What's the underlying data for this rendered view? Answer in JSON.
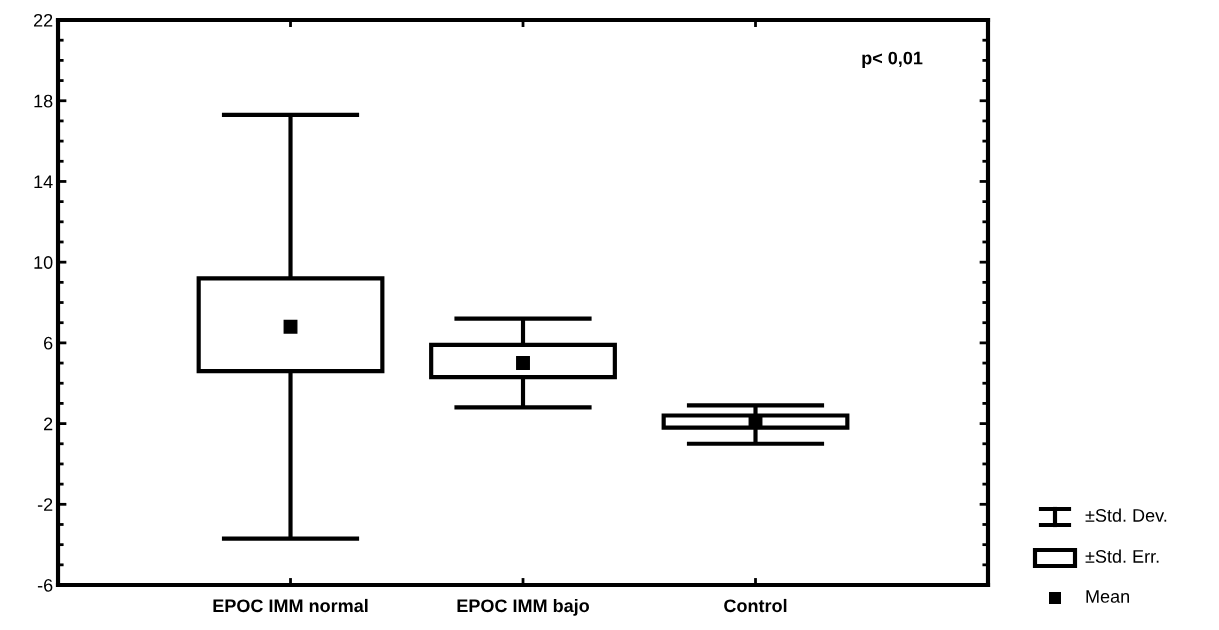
{
  "chart_data": {
    "type": "box",
    "categories": [
      "EPOC IMM normal",
      "EPOC IMM bajo",
      "Control"
    ],
    "boxes": [
      {
        "low": -3.7,
        "q1": 4.6,
        "q3": 9.2,
        "high": 17.3,
        "mean": 6.8
      },
      {
        "low": 2.8,
        "q1": 4.3,
        "q3": 5.9,
        "high": 7.2,
        "mean": 5.0
      },
      {
        "low": 1.0,
        "q1": 1.8,
        "q3": 2.4,
        "high": 2.9,
        "mean": 2.1
      }
    ],
    "ylim": [
      -6,
      22
    ],
    "yticks": [
      -6,
      -2,
      2,
      6,
      10,
      14,
      18,
      22
    ],
    "annotations": [
      "p< 0,01",
      "±Std. Dev.",
      "±Std. Err.",
      "Mean"
    ]
  }
}
